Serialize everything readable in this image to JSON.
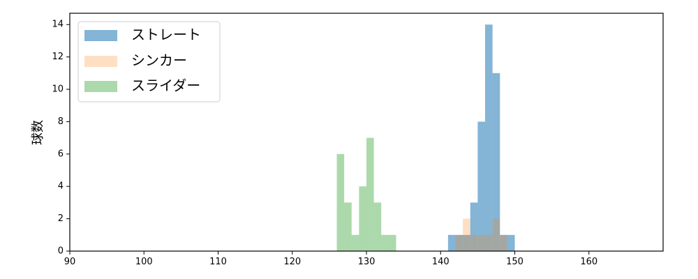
{
  "chart_data": {
    "type": "bar",
    "title": "",
    "xlabel": "",
    "ylabel": "球数",
    "xlim": [
      90,
      170
    ],
    "ylim": [
      0,
      14.7
    ],
    "xticks": [
      90,
      100,
      110,
      120,
      130,
      140,
      150,
      160
    ],
    "yticks": [
      0,
      2,
      4,
      6,
      8,
      10,
      12,
      14
    ],
    "grid": false,
    "legend_position": "top-left",
    "bin_width": 1,
    "series": [
      {
        "name": "ストレート",
        "color": "#1f77b4",
        "opacity": 0.55,
        "bins": [
          {
            "x": 141,
            "count": 1
          },
          {
            "x": 142,
            "count": 1
          },
          {
            "x": 143,
            "count": 1
          },
          {
            "x": 144,
            "count": 3
          },
          {
            "x": 145,
            "count": 8
          },
          {
            "x": 146,
            "count": 14
          },
          {
            "x": 147,
            "count": 11
          },
          {
            "x": 148,
            "count": 1
          },
          {
            "x": 149,
            "count": 1
          }
        ]
      },
      {
        "name": "シンカー",
        "color": "#ff7f0e",
        "opacity": 0.25,
        "bins": [
          {
            "x": 142,
            "count": 1
          },
          {
            "x": 143,
            "count": 2
          },
          {
            "x": 144,
            "count": 1
          },
          {
            "x": 145,
            "count": 1
          },
          {
            "x": 146,
            "count": 1
          },
          {
            "x": 147,
            "count": 2
          },
          {
            "x": 148,
            "count": 1
          }
        ]
      },
      {
        "name": "スライダー",
        "color": "#2ca02c",
        "opacity": 0.4,
        "bins": [
          {
            "x": 126,
            "count": 6
          },
          {
            "x": 127,
            "count": 3
          },
          {
            "x": 128,
            "count": 1
          },
          {
            "x": 129,
            "count": 4
          },
          {
            "x": 130,
            "count": 7
          },
          {
            "x": 131,
            "count": 3
          },
          {
            "x": 132,
            "count": 1
          },
          {
            "x": 133,
            "count": 1
          }
        ]
      }
    ]
  }
}
